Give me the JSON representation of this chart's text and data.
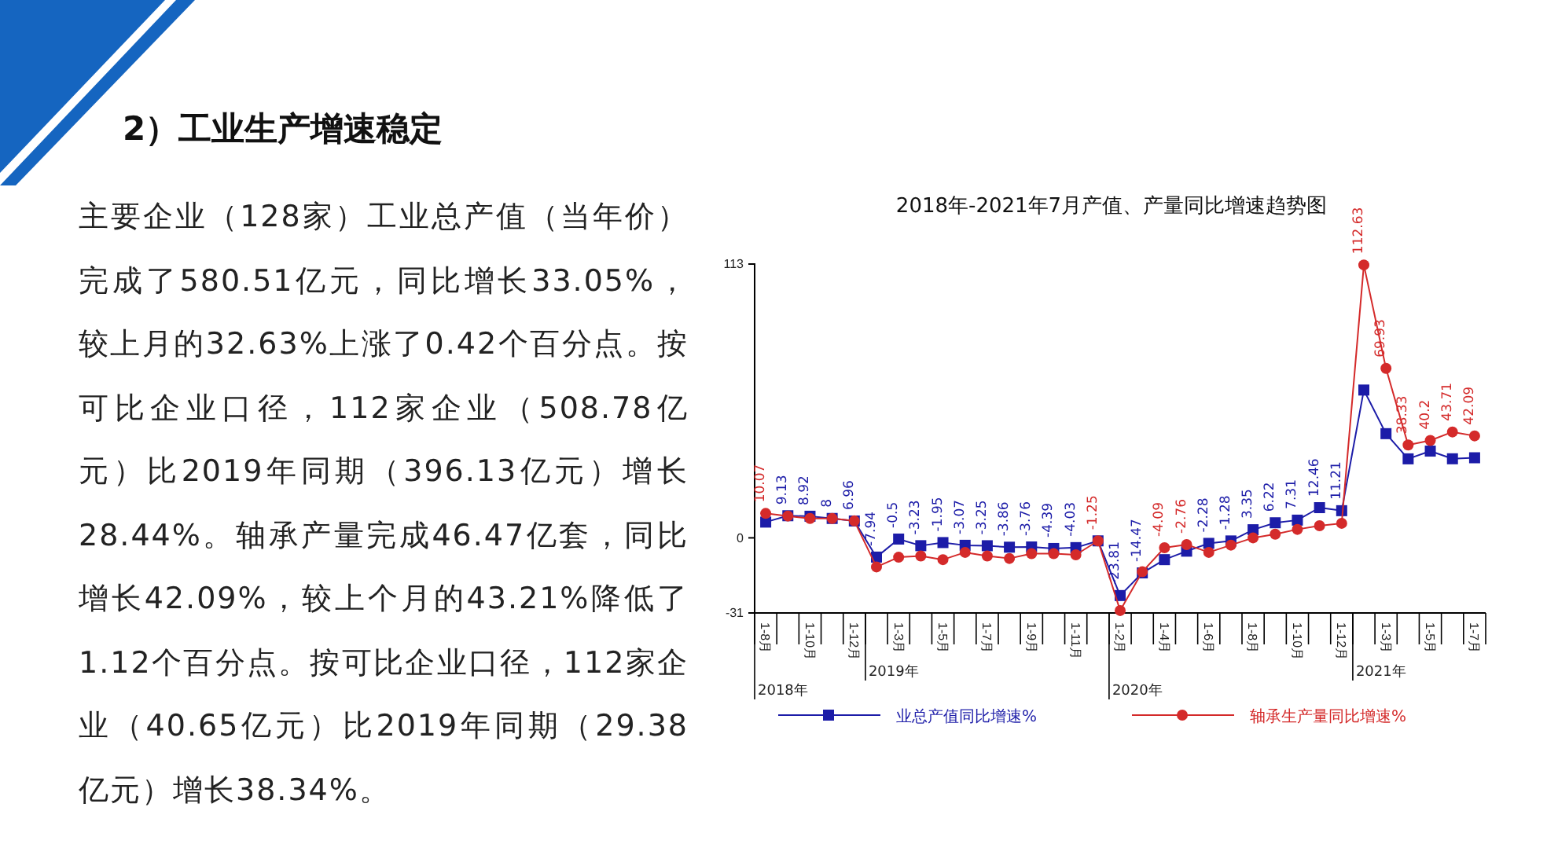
{
  "chart_data": {
    "type": "line",
    "title": "2018年-2021年7月产值、产量同比增速趋势图",
    "categories": [
      "1-8月",
      null,
      "1-10月",
      null,
      "1-12月",
      null,
      "1-3月",
      null,
      "1-5月",
      null,
      "1-7月",
      null,
      "1-9月",
      null,
      "1-11月",
      null,
      "1-2月",
      null,
      "1-4月",
      null,
      "1-6月",
      null,
      "1-8月",
      null,
      "1-10月",
      null,
      "1-12月",
      null,
      "1-3月",
      null,
      "1-5月",
      null,
      "1-7月"
    ],
    "series": [
      {
        "name": "业总产值同比增速%",
        "color": "#1c1ca8",
        "marker": "square",
        "values": [
          6.5,
          9.13,
          8.92,
          8,
          6.96,
          -7.94,
          -0.5,
          -3.23,
          -1.95,
          -3.07,
          -3.25,
          -3.86,
          -3.76,
          -4.39,
          -4.03,
          -1.25,
          -23.81,
          -14.47,
          -9,
          -5.5,
          -2.28,
          -1.28,
          3.35,
          6.22,
          7.31,
          12.46,
          11.21,
          61,
          43,
          32.6,
          35.8,
          32.63,
          33.05
        ],
        "value_labels": [
          null,
          "9.13",
          "8.92",
          "8",
          "6.96",
          "-7.94",
          "-0.5",
          "-3.23",
          "-1.95",
          "-3.07",
          "-3.25",
          "-3.86",
          "-3.76",
          "-4.39",
          "-4.03",
          null,
          "-23.81",
          "-14.47",
          null,
          null,
          "-2.28",
          "-1.28",
          "3.35",
          "6.22",
          "7.31",
          "12.46",
          "11.21",
          null,
          null,
          null,
          null,
          null,
          null
        ]
      },
      {
        "name": "轴承生产量同比增速%",
        "color": "#d42a2a",
        "marker": "circle",
        "values": [
          10.07,
          9,
          8,
          8,
          7,
          -12,
          -8,
          -7.5,
          -9,
          -6,
          -7.5,
          -8.5,
          -6.5,
          -6.5,
          -7,
          -1.25,
          -30,
          -14,
          -4.09,
          -2.76,
          -6,
          -3,
          0,
          1.5,
          3.5,
          5,
          6,
          112.63,
          69.93,
          38.33,
          40.2,
          43.71,
          42.09
        ],
        "value_labels": [
          "10.07",
          null,
          null,
          null,
          null,
          null,
          null,
          null,
          null,
          null,
          null,
          null,
          null,
          null,
          null,
          "-1.25",
          null,
          null,
          "-4.09",
          "-2.76",
          null,
          null,
          null,
          null,
          null,
          null,
          null,
          "112.63",
          "69.93",
          "38.33",
          "40.2",
          "43.71",
          "42.09"
        ]
      }
    ],
    "ylim": [
      -31,
      113
    ],
    "yticks": [
      -31,
      0,
      113
    ],
    "legend": "bottom",
    "grid": false,
    "annotations": [
      "2）工业生产增速稳定",
      "主要企业（128家）工业总产值（当年价）完成了580.51亿元，同比增长33.05%，较上月的32.63%上涨了0.42个百分点。按可比企业口径，112家企业（508.78亿元）比2019年同期（396.13亿元）增长28.44%。轴承产量完成46.47亿套，同比增长42.09%，较上个月的43.21%降低了1.12个百分点。按可比企业口径，112家企业（40.65亿元）比2019年同期（29.38亿元）增长38.34%。",
      "2018年",
      "2019年",
      "2020年",
      "2021年"
    ]
  }
}
